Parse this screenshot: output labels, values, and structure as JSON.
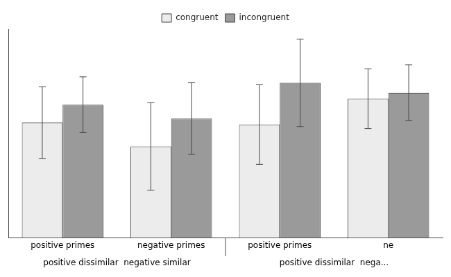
{
  "chart_data": {
    "type": "bar",
    "categories": [
      "positive primes",
      "negative primes",
      "positive primes",
      "ne"
    ],
    "series": [
      {
        "name": "congruent",
        "color": "#ececec",
        "values": [
          0.58,
          0.46,
          0.57,
          0.7
        ],
        "errors": [
          0.18,
          0.22,
          0.2,
          0.15
        ]
      },
      {
        "name": "incongruent",
        "color": "#9a9a9a",
        "values": [
          0.67,
          0.6,
          0.78,
          0.73
        ],
        "errors": [
          0.14,
          0.18,
          0.22,
          0.14
        ]
      }
    ],
    "annotations": [
      "positive dissimilar  negative similar",
      "positive dissimilar  nega..."
    ],
    "ylim": [
      0,
      1.05
    ],
    "grid": false,
    "legend": "top",
    "tick_labels": "x"
  }
}
